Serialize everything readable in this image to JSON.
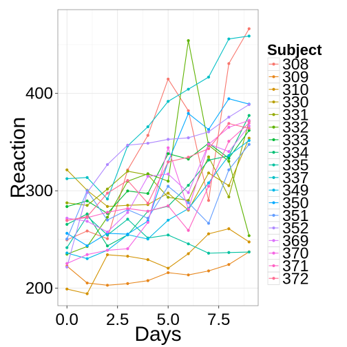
{
  "chart_data": {
    "type": "line",
    "xlabel": "Days",
    "ylabel": "Reaction",
    "xlim": [
      -0.45,
      9.45
    ],
    "ylim": [
      182,
      486
    ],
    "xticks": [
      0.0,
      2.5,
      5.0,
      7.5
    ],
    "xtick_labels": [
      "0.0",
      "2.5",
      "5.0",
      "7.5"
    ],
    "yticks": [
      200,
      300,
      400
    ],
    "ytick_labels": [
      "200",
      "300",
      "400"
    ],
    "grid": true,
    "legend": {
      "title": "Subject",
      "position": "right"
    },
    "x": [
      0,
      1,
      2,
      3,
      4,
      5,
      6,
      7,
      8,
      9
    ],
    "series": [
      {
        "name": "308",
        "color": "#F8766D",
        "values": [
          249.6,
          258.7,
          250.8,
          321.4,
          356.9,
          414.7,
          382.2,
          290.1,
          430.6,
          466.4
        ]
      },
      {
        "name": "309",
        "color": "#E7861B",
        "values": [
          222.7,
          205.3,
          203.0,
          204.7,
          207.7,
          215.9,
          213.6,
          217.7,
          224.3,
          237.3
        ]
      },
      {
        "name": "310",
        "color": "#D39200",
        "values": [
          199.1,
          194.3,
          234.3,
          232.8,
          229.3,
          220.5,
          235.4,
          255.8,
          261.0,
          247.5
        ]
      },
      {
        "name": "330",
        "color": "#B79F00",
        "values": [
          321.5,
          300.4,
          283.9,
          285.1,
          285.8,
          297.6,
          280.2,
          318.3,
          305.3,
          354.0
        ]
      },
      {
        "name": "331",
        "color": "#93AA00",
        "values": [
          287.6,
          285.0,
          301.8,
          320.1,
          316.3,
          293.3,
          290.1,
          334.8,
          293.7,
          371.6
        ]
      },
      {
        "name": "332",
        "color": "#5EB300",
        "values": [
          234.9,
          242.8,
          272.9,
          309.8,
          317.5,
          309.9,
          454.2,
          346.8,
          330.3,
          253.9
        ]
      },
      {
        "name": "333",
        "color": "#00BA38",
        "values": [
          283.8,
          289.6,
          276.8,
          299.8,
          297.2,
          338.1,
          332.6,
          348.8,
          333.4,
          362.0
        ]
      },
      {
        "name": "334",
        "color": "#00BF74",
        "values": [
          265.5,
          276.2,
          243.4,
          254.7,
          279.0,
          284.2,
          305.6,
          331.5,
          335.8,
          377.3
        ]
      },
      {
        "name": "335",
        "color": "#00C19F",
        "values": [
          241.6,
          273.9,
          254.5,
          270.8,
          251.5,
          254.6,
          245.5,
          235.9,
          236.6,
          237.1
        ]
      },
      {
        "name": "337",
        "color": "#00BFC4",
        "values": [
          312.4,
          313.6,
          291.6,
          346.1,
          365.7,
          391.8,
          404.3,
          416.7,
          455.9,
          458.9
        ]
      },
      {
        "name": "349",
        "color": "#00B8E7",
        "values": [
          236.1,
          230.3,
          238.9,
          254.9,
          250.5,
          269.8,
          281.6,
          308.1,
          336.2,
          351.6
        ]
      },
      {
        "name": "350",
        "color": "#00A9FF",
        "values": [
          256.3,
          243.5,
          256.3,
          255.5,
          268.9,
          329.7,
          379.4,
          362.9,
          394.5,
          389.0
        ]
      },
      {
        "name": "351",
        "color": "#619CFF",
        "values": [
          250.5,
          300.1,
          269.9,
          280.6,
          271.8,
          304.6,
          287.7,
          266.6,
          321.5,
          347.6
        ]
      },
      {
        "name": "352",
        "color": "#AE87FF",
        "values": [
          221.7,
          298.2,
          326.9,
          346.8,
          348.8,
          352.8,
          354.4,
          360.5,
          375.6,
          388.5
        ]
      },
      {
        "name": "369",
        "color": "#DB72FB",
        "values": [
          271.9,
          268.7,
          257.7,
          277.7,
          314.8,
          317.2,
          298.1,
          348.1,
          340.3,
          366.5
        ]
      },
      {
        "name": "370",
        "color": "#F564E3",
        "values": [
          225.3,
          234.5,
          238.9,
          240.5,
          267.5,
          344.2,
          281.1,
          347.6,
          365.2,
          372.2
        ]
      },
      {
        "name": "371",
        "color": "#FF61C3",
        "values": [
          269.9,
          272.4,
          277.9,
          281.8,
          279.0,
          284.6,
          259.3,
          304.6,
          350.8,
          369.5
        ]
      },
      {
        "name": "372",
        "color": "#FF6C91",
        "values": [
          269.4,
          273.5,
          297.6,
          310.6,
          287.2,
          329.6,
          334.5,
          343.2,
          369.1,
          364.1
        ]
      }
    ]
  }
}
